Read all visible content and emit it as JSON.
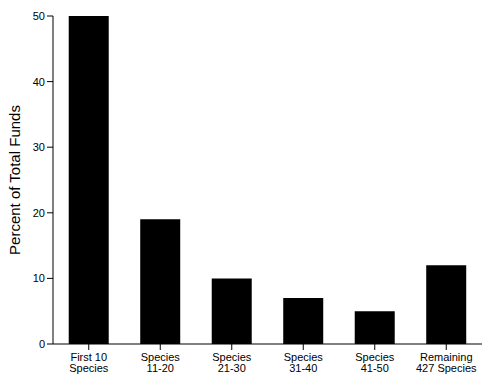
{
  "chart_data": {
    "type": "bar",
    "y_label": "Percent of Total Funds",
    "categories": [
      "First 10\nSpecies",
      "Species\n11-20",
      "Species\n21-30",
      "Species\n31-40",
      "Species\n41-50",
      "Remaining\n427 Species"
    ],
    "values": [
      50,
      19,
      10,
      7,
      5,
      12
    ],
    "color": "#000000",
    "ylim": [
      0,
      50
    ],
    "yticks": [
      0,
      10,
      20,
      30,
      40,
      50
    ],
    "grid": false
  }
}
